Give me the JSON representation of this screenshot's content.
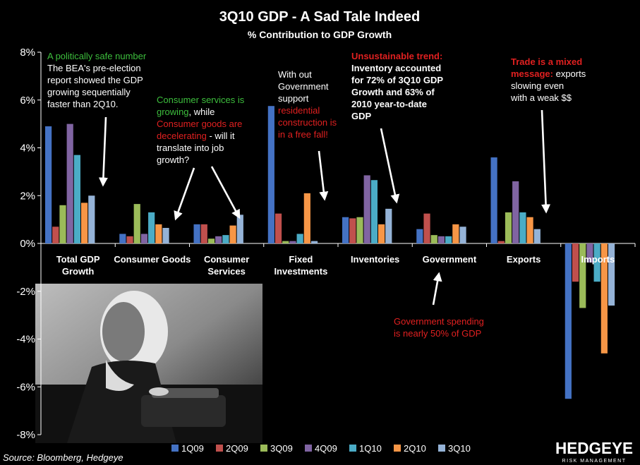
{
  "chart_data": {
    "type": "bar",
    "title": "3Q10 GDP - A Sad Tale Indeed",
    "subtitle": "% Contribution to GDP Growth",
    "categories": [
      "Total GDP Growth",
      "Consumer Goods",
      "Consumer Services",
      "Fixed Investments",
      "Inventories",
      "Government",
      "Exports",
      "Imports"
    ],
    "ylim": [
      -8,
      8
    ],
    "yticks": [
      8,
      6,
      4,
      2,
      0,
      -2,
      -4,
      -6,
      -8
    ],
    "ytick_labels": [
      "8%",
      "6%",
      "4%",
      "2%",
      "0%",
      "-2%",
      "-4%",
      "-6%",
      "-8%"
    ],
    "legend_position": "bottom",
    "series": [
      {
        "name": "1Q09",
        "color": "#4472C4",
        "values": [
          4.9,
          0.4,
          0.8,
          5.75,
          1.1,
          0.6,
          3.6,
          -6.5
        ]
      },
      {
        "name": "2Q09",
        "color": "#C0504D",
        "values": [
          0.7,
          0.3,
          0.8,
          1.25,
          1.05,
          1.25,
          0.1,
          -1.6
        ]
      },
      {
        "name": "3Q09",
        "color": "#9BBB59",
        "values": [
          1.6,
          1.65,
          0.2,
          0.1,
          1.1,
          0.35,
          1.3,
          -2.7
        ]
      },
      {
        "name": "4Q09",
        "color": "#8064A2",
        "values": [
          5.0,
          0.4,
          0.3,
          0.1,
          2.85,
          0.3,
          2.6,
          -0.8
        ]
      },
      {
        "name": "1Q10",
        "color": "#4BACC6",
        "values": [
          3.7,
          1.3,
          0.35,
          0.4,
          2.65,
          0.3,
          1.3,
          -1.6
        ]
      },
      {
        "name": "2Q10",
        "color": "#F79646",
        "values": [
          1.7,
          0.8,
          0.75,
          2.1,
          0.8,
          0.8,
          1.1,
          -4.6
        ]
      },
      {
        "name": "3Q10",
        "color": "#95B3D7",
        "values": [
          2.0,
          0.65,
          1.2,
          0.1,
          1.45,
          0.7,
          0.6,
          -2.6
        ]
      }
    ],
    "annotations": [
      {
        "lines": [
          {
            "text": "A politically safe number",
            "color": "#3DBE3D"
          },
          {
            "text": "The BEA's pre-election"
          },
          {
            "text": "report showed the GDP"
          },
          {
            "text": "growing sequentially"
          },
          {
            "text": "faster than 2Q10."
          }
        ]
      },
      {
        "lines": [
          {
            "text": "Consumer services is",
            "color": "#3DBE3D"
          },
          {
            "segments": [
              {
                "text": "growing",
                "color": "#3DBE3D"
              },
              {
                "text": ", while"
              }
            ]
          },
          {
            "text": "Consumer goods are",
            "color": "#E02020"
          },
          {
            "segments": [
              {
                "text": "decelerating",
                "color": "#E02020"
              },
              {
                "text": " - will it"
              }
            ]
          },
          {
            "text": "translate into job"
          },
          {
            "text": "growth?"
          }
        ]
      },
      {
        "lines": [
          {
            "text": "With out"
          },
          {
            "text": "Government"
          },
          {
            "text": "support"
          },
          {
            "text": "residential",
            "color": "#E02020"
          },
          {
            "text": "construction is",
            "color": "#E02020"
          },
          {
            "text": "in a free fall!",
            "color": "#E02020"
          }
        ]
      },
      {
        "lines": [
          {
            "text": "Unsustainable trend:",
            "color": "#E02020",
            "bold": true
          },
          {
            "text": "Inventory accounted",
            "bold": true
          },
          {
            "text": "for 72% of 3Q10 GDP",
            "bold": true
          },
          {
            "text": "Growth and 63% of",
            "bold": true
          },
          {
            "text": "2010 year-to-date",
            "bold": true
          },
          {
            "text": "GDP",
            "bold": true
          }
        ]
      },
      {
        "lines": [
          {
            "text": "Trade is a mixed",
            "color": "#E02020",
            "bold": true
          },
          {
            "segments": [
              {
                "text": "message:",
                "color": "#E02020",
                "bold": true
              },
              {
                "text": " exports"
              }
            ]
          },
          {
            "text": "slowing  even"
          },
          {
            "text": "with a weak $$"
          }
        ]
      },
      {
        "lines": [
          {
            "text": "Government spending",
            "color": "#E02020"
          },
          {
            "text": "is nearly 50% of GDP",
            "color": "#E02020"
          }
        ]
      }
    ],
    "source": "Source: Bloomberg, Hedgeye",
    "logo": {
      "brand": "HEDGEYE",
      "tagline": "RISK MANAGEMENT"
    }
  }
}
